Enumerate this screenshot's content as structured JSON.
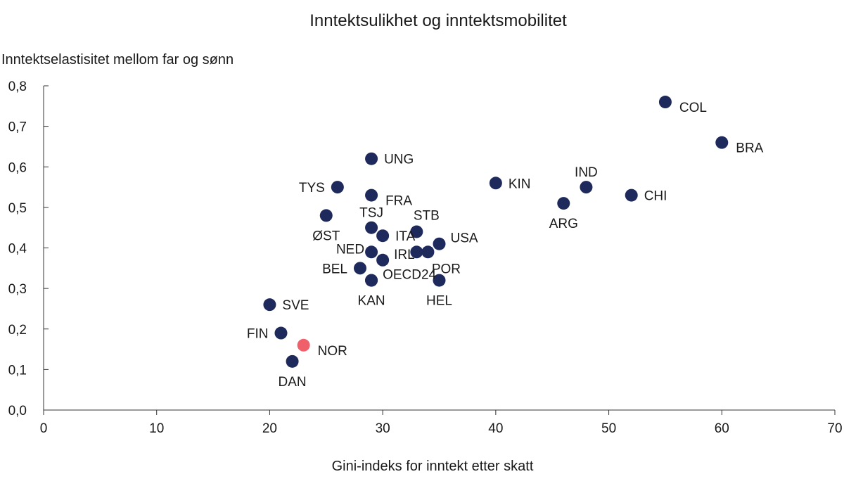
{
  "chart_data": {
    "type": "scatter",
    "title": "Inntektsulikhet og inntektsmobilitet",
    "xlabel": "Gini-indeks for inntekt etter skatt",
    "ylabel": "Inntektselastisitet mellom far og sønn",
    "xlim": [
      0,
      70
    ],
    "ylim": [
      0,
      0.8
    ],
    "x_ticks": [
      0,
      10,
      20,
      30,
      40,
      50,
      60,
      70
    ],
    "x_tick_labels": [
      "0",
      "10",
      "20",
      "30",
      "40",
      "50",
      "60",
      "70"
    ],
    "y_ticks": [
      0,
      0.1,
      0.2,
      0.3,
      0.4,
      0.5,
      0.6,
      0.7,
      0.8
    ],
    "y_tick_labels": [
      "0,0",
      "0,1",
      "0,2",
      "0,3",
      "0,4",
      "0,5",
      "0,6",
      "0,7",
      "0,8"
    ],
    "grid": false,
    "colors": {
      "default": "#1f2a5c",
      "highlight": "#f0606a"
    },
    "points": [
      {
        "label": "COL",
        "x": 55,
        "y": 0.76,
        "label_pos": "right-below"
      },
      {
        "label": "BRA",
        "x": 60,
        "y": 0.66,
        "label_pos": "right-below"
      },
      {
        "label": "UNG",
        "x": 29,
        "y": 0.62,
        "label_pos": "right"
      },
      {
        "label": "KIN",
        "x": 40,
        "y": 0.56,
        "label_pos": "right"
      },
      {
        "label": "IND",
        "x": 48,
        "y": 0.55,
        "label_pos": "above"
      },
      {
        "label": "TYS",
        "x": 26,
        "y": 0.55,
        "label_pos": "left"
      },
      {
        "label": "CHI",
        "x": 52,
        "y": 0.53,
        "label_pos": "right"
      },
      {
        "label": "FRA",
        "x": 29,
        "y": 0.53,
        "label_pos": "right-below"
      },
      {
        "label": "ARG",
        "x": 46,
        "y": 0.51,
        "label_pos": "below"
      },
      {
        "label": "ØST",
        "x": 25,
        "y": 0.48,
        "label_pos": "below"
      },
      {
        "label": "TSJ",
        "x": 29,
        "y": 0.45,
        "label_pos": "above"
      },
      {
        "label": "STB",
        "x": 33,
        "y": 0.44,
        "label_pos": "above-right"
      },
      {
        "label": "ITA",
        "x": 30,
        "y": 0.43,
        "label_pos": "right"
      },
      {
        "label": "USA",
        "x": 35,
        "y": 0.41,
        "label_pos": "right-above"
      },
      {
        "label": "NED",
        "x": 29,
        "y": 0.39,
        "label_pos": "left-above"
      },
      {
        "label": "",
        "x": 33,
        "y": 0.39,
        "label_pos": "none"
      },
      {
        "label": "POR",
        "x": 34,
        "y": 0.39,
        "label_pos": "below-right"
      },
      {
        "label": "IRL",
        "x": 30,
        "y": 0.37,
        "label_pos": "right-above"
      },
      {
        "label": "BEL",
        "x": 28,
        "y": 0.35,
        "label_pos": "left"
      },
      {
        "label": "OECD24",
        "x": 29,
        "y": 0.32,
        "label_pos": "right-above"
      },
      {
        "label": "KAN",
        "x": 29,
        "y": 0.32,
        "label_pos": "below"
      },
      {
        "label": "HEL",
        "x": 35,
        "y": 0.32,
        "label_pos": "below"
      },
      {
        "label": "SVE",
        "x": 20,
        "y": 0.26,
        "label_pos": "right"
      },
      {
        "label": "FIN",
        "x": 21,
        "y": 0.19,
        "label_pos": "left"
      },
      {
        "label": "NOR",
        "x": 23,
        "y": 0.16,
        "label_pos": "right-below",
        "highlight": true
      },
      {
        "label": "DAN",
        "x": 22,
        "y": 0.12,
        "label_pos": "below"
      }
    ]
  }
}
